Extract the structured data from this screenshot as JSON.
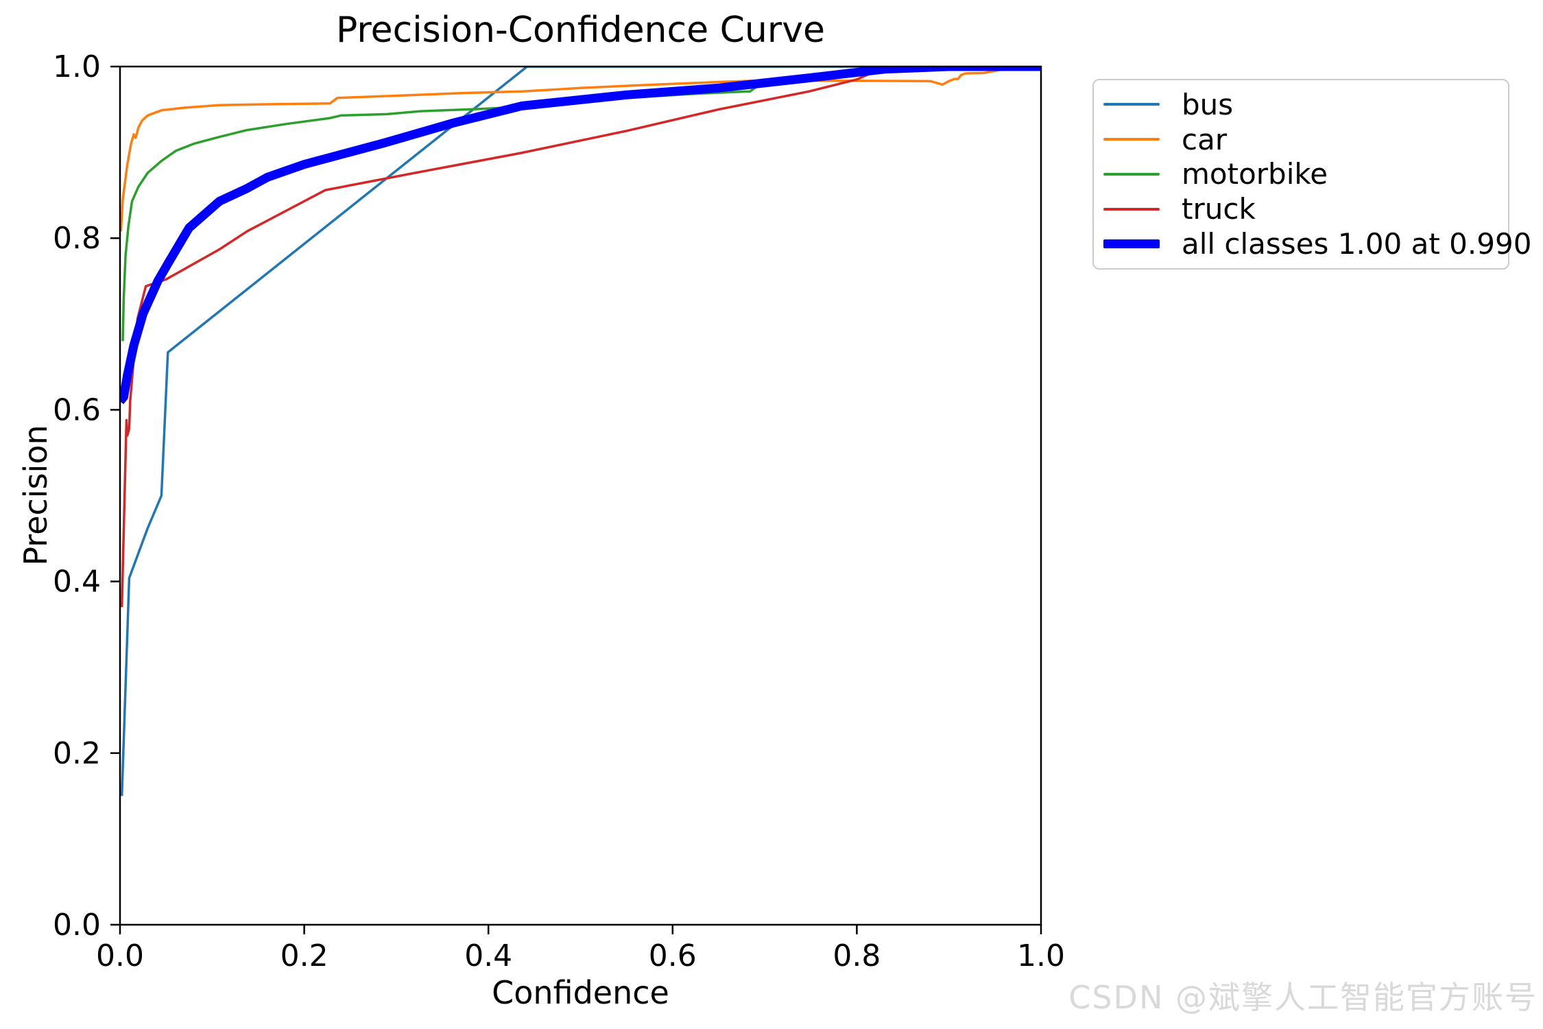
{
  "figure": {
    "title": "Precision-Confidence Curve",
    "xlabel": "Confidence",
    "ylabel": "Precision"
  },
  "watermark": {
    "text": "CSDN @斌擎人工智能官方账号",
    "color": "#d9d9d9"
  },
  "chart_data": {
    "type": "line",
    "title": "Precision-Confidence Curve",
    "xlabel": "Confidence",
    "ylabel": "Precision",
    "xlim": [
      0.0,
      1.0
    ],
    "ylim": [
      0.0,
      1.0
    ],
    "xticks": [
      "0.0",
      "0.2",
      "0.4",
      "0.6",
      "0.8",
      "1.0"
    ],
    "yticks": [
      "0.0",
      "0.2",
      "0.4",
      "0.6",
      "0.8",
      "1.0"
    ],
    "grid": false,
    "legend_position": "upper right outside axes",
    "axis_color": "#000000",
    "series": [
      {
        "name": "bus",
        "label": "bus",
        "color": "#1f77b4",
        "linewidth": 3.5,
        "points": [
          [
            0.002,
            0.15
          ],
          [
            0.01,
            0.404
          ],
          [
            0.03,
            0.462
          ],
          [
            0.045,
            0.5
          ],
          [
            0.052,
            0.667
          ],
          [
            0.442,
            1.0
          ],
          [
            0.95,
            1.0
          ]
        ]
      },
      {
        "name": "car",
        "label": "car",
        "color": "#ff7f0e",
        "linewidth": 3.5,
        "points": [
          [
            0.001,
            0.808
          ],
          [
            0.003,
            0.845
          ],
          [
            0.006,
            0.87
          ],
          [
            0.008,
            0.886
          ],
          [
            0.012,
            0.91
          ],
          [
            0.015,
            0.921
          ],
          [
            0.017,
            0.917
          ],
          [
            0.02,
            0.929
          ],
          [
            0.024,
            0.937
          ],
          [
            0.03,
            0.943
          ],
          [
            0.045,
            0.949
          ],
          [
            0.07,
            0.952
          ],
          [
            0.108,
            0.955
          ],
          [
            0.16,
            0.956
          ],
          [
            0.228,
            0.957
          ],
          [
            0.236,
            0.9635
          ],
          [
            0.3,
            0.966
          ],
          [
            0.37,
            0.969
          ],
          [
            0.436,
            0.971
          ],
          [
            0.5,
            0.975
          ],
          [
            0.56,
            0.978
          ],
          [
            0.65,
            0.982
          ],
          [
            0.704,
            0.984
          ],
          [
            0.76,
            0.9835
          ],
          [
            0.88,
            0.983
          ],
          [
            0.893,
            0.979
          ],
          [
            0.9,
            0.983
          ],
          [
            0.906,
            0.9855
          ],
          [
            0.91,
            0.9855
          ],
          [
            0.913,
            0.99
          ],
          [
            0.918,
            0.992
          ],
          [
            0.938,
            0.9925
          ],
          [
            0.965,
            0.998
          ],
          [
            0.99,
            1.0
          ],
          [
            1.0,
            1.0
          ]
        ]
      },
      {
        "name": "motorbike",
        "label": "motorbike",
        "color": "#2ca02c",
        "linewidth": 3.5,
        "points": [
          [
            0.003,
            0.68
          ],
          [
            0.004,
            0.73
          ],
          [
            0.006,
            0.78
          ],
          [
            0.009,
            0.813
          ],
          [
            0.013,
            0.843
          ],
          [
            0.02,
            0.86
          ],
          [
            0.03,
            0.876
          ],
          [
            0.045,
            0.89
          ],
          [
            0.061,
            0.902
          ],
          [
            0.08,
            0.91
          ],
          [
            0.108,
            0.918
          ],
          [
            0.138,
            0.926
          ],
          [
            0.18,
            0.933
          ],
          [
            0.228,
            0.94
          ],
          [
            0.24,
            0.943
          ],
          [
            0.29,
            0.9445
          ],
          [
            0.326,
            0.948
          ],
          [
            0.39,
            0.9505
          ],
          [
            0.436,
            0.953
          ],
          [
            0.49,
            0.959
          ],
          [
            0.56,
            0.964
          ],
          [
            0.62,
            0.968
          ],
          [
            0.66,
            0.97
          ],
          [
            0.684,
            0.971
          ],
          [
            0.69,
            0.9755
          ]
        ]
      },
      {
        "name": "truck",
        "label": "truck",
        "color": "#d62728",
        "linewidth": 3.5,
        "points": [
          [
            0.002,
            0.37
          ],
          [
            0.005,
            0.5
          ],
          [
            0.007,
            0.588
          ],
          [
            0.008,
            0.57
          ],
          [
            0.01,
            0.578
          ],
          [
            0.011,
            0.61
          ],
          [
            0.015,
            0.66
          ],
          [
            0.019,
            0.706
          ],
          [
            0.028,
            0.744
          ],
          [
            0.05,
            0.752
          ],
          [
            0.108,
            0.787
          ],
          [
            0.138,
            0.808
          ],
          [
            0.223,
            0.856
          ],
          [
            0.32,
            0.876
          ],
          [
            0.434,
            0.899
          ],
          [
            0.55,
            0.925
          ],
          [
            0.65,
            0.95
          ],
          [
            0.748,
            0.971
          ],
          [
            0.8,
            0.985
          ],
          [
            0.832,
            1.0
          ],
          [
            0.99,
            1.0
          ]
        ]
      },
      {
        "name": "all-classes",
        "label": "all classes 1.00 at 0.990",
        "color": "#0000ff",
        "linewidth": 13,
        "points": [
          [
            0.0,
            0.61
          ],
          [
            0.004,
            0.615
          ],
          [
            0.008,
            0.64
          ],
          [
            0.015,
            0.675
          ],
          [
            0.025,
            0.712
          ],
          [
            0.041,
            0.75
          ],
          [
            0.054,
            0.774
          ],
          [
            0.075,
            0.812
          ],
          [
            0.108,
            0.843
          ],
          [
            0.138,
            0.858
          ],
          [
            0.16,
            0.871
          ],
          [
            0.2,
            0.886
          ],
          [
            0.287,
            0.911
          ],
          [
            0.361,
            0.934
          ],
          [
            0.436,
            0.954
          ],
          [
            0.55,
            0.967
          ],
          [
            0.65,
            0.975
          ],
          [
            0.75,
            0.987
          ],
          [
            0.83,
            0.997
          ],
          [
            0.9,
            1.0
          ],
          [
            1.0,
            1.0
          ]
        ]
      }
    ]
  }
}
